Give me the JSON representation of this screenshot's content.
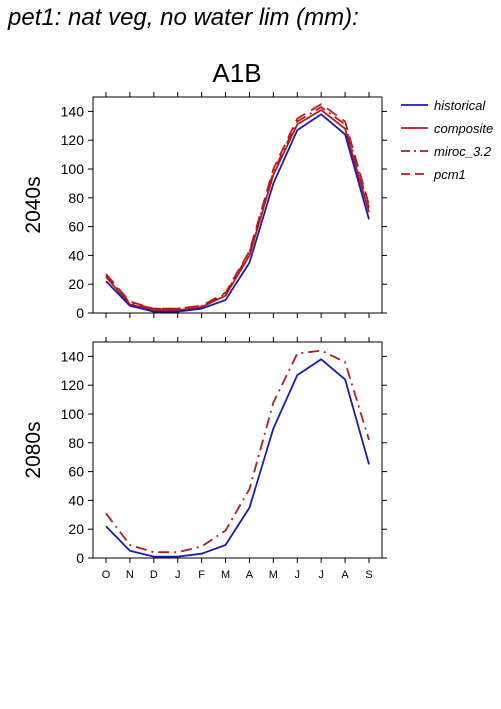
{
  "figure_title": "pet1: nat veg, no water lim (mm):",
  "scenario_label": "A1B",
  "colors": {
    "historical": "#1a1ab8",
    "future": "#b81a1a",
    "frame": "#000000"
  },
  "chart_data": [
    {
      "type": "line",
      "panel": "2040s",
      "ylabel": "2040s",
      "categories": [
        "O",
        "N",
        "D",
        "J",
        "F",
        "M",
        "A",
        "M",
        "J",
        "J",
        "A",
        "S"
      ],
      "ylim": [
        0,
        150
      ],
      "yticks": [
        0,
        20,
        40,
        60,
        80,
        100,
        120,
        140
      ],
      "grid": false,
      "legend": "right",
      "series": [
        {
          "name": "historical",
          "style": "solid",
          "color": "#1a1ab8",
          "values": [
            22,
            5,
            1,
            1,
            3,
            9,
            35,
            90,
            127,
            138,
            124,
            65
          ]
        },
        {
          "name": "composite",
          "style": "solid",
          "color": "#b81a1a",
          "values": [
            25,
            6,
            2,
            2,
            4,
            12,
            40,
            96,
            131,
            141,
            128,
            70
          ]
        },
        {
          "name": "miroc_3.2",
          "style": "dashdot",
          "color": "#b81a1a",
          "values": [
            26,
            7,
            3,
            3,
            5,
            13,
            42,
            98,
            133,
            143,
            131,
            73
          ]
        },
        {
          "name": "pcm1",
          "style": "dashed",
          "color": "#b81a1a",
          "values": [
            27,
            8,
            3,
            3,
            5,
            14,
            43,
            100,
            135,
            145,
            133,
            75
          ]
        }
      ]
    },
    {
      "type": "line",
      "panel": "2080s",
      "ylabel": "2080s",
      "categories": [
        "O",
        "N",
        "D",
        "J",
        "F",
        "M",
        "A",
        "M",
        "J",
        "J",
        "A",
        "S"
      ],
      "ylim": [
        0,
        150
      ],
      "yticks": [
        0,
        20,
        40,
        60,
        80,
        100,
        120,
        140
      ],
      "grid": false,
      "series": [
        {
          "name": "historical",
          "style": "solid",
          "color": "#1a1ab8",
          "values": [
            22,
            5,
            1,
            1,
            3,
            9,
            35,
            90,
            127,
            138,
            124,
            65
          ]
        },
        {
          "name": "miroc_3.2",
          "style": "dashdot",
          "color": "#b81a1a",
          "values": [
            31,
            9,
            4,
            4,
            8,
            19,
            48,
            108,
            142,
            144,
            136,
            82
          ]
        }
      ]
    }
  ]
}
